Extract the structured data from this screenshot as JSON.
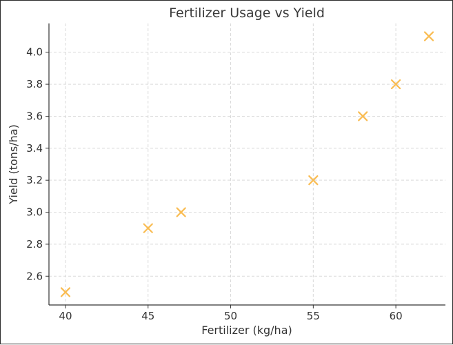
{
  "chart_data": {
    "type": "scatter",
    "title": "Fertilizer Usage vs Yield",
    "xlabel": "Fertilizer (kg/ha)",
    "ylabel": "Yield (tons/ha)",
    "x": [
      40,
      45,
      47,
      55,
      58,
      60,
      62
    ],
    "y": [
      2.5,
      2.9,
      3.0,
      3.2,
      3.6,
      3.8,
      4.1
    ],
    "xlim": [
      39.0,
      63.0
    ],
    "ylim": [
      2.42,
      4.18
    ],
    "x_ticks": [
      40,
      45,
      50,
      55,
      60
    ],
    "x_tick_labels": [
      "40",
      "45",
      "50",
      "55",
      "60"
    ],
    "y_ticks": [
      2.6,
      2.8,
      3.0,
      3.2,
      3.4,
      3.6,
      3.8,
      4.0
    ],
    "y_tick_labels": [
      "2.6",
      "2.8",
      "3.0",
      "3.2",
      "3.4",
      "3.6",
      "3.8",
      "4.0"
    ],
    "marker": "x",
    "marker_color": "#f9bc52",
    "grid": true,
    "grid_color": "#d9d9d9",
    "axis_color": "#333333"
  }
}
